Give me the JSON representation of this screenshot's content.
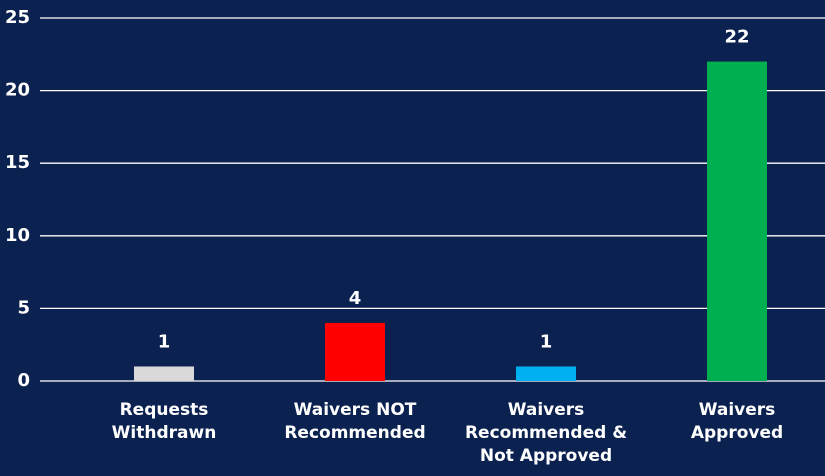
{
  "chart_data": {
    "type": "bar",
    "categories": [
      "Requests Withdrawn",
      "Waivers NOT Recommended",
      "Waivers Recommended & Not Approved",
      "Waivers Approved"
    ],
    "values": [
      1,
      4,
      1,
      22
    ],
    "colors": [
      "#d9d9d9",
      "#ff0000",
      "#00b0f0",
      "#00b050"
    ],
    "ylim": [
      0,
      25
    ],
    "yticks": [
      0,
      5,
      10,
      15,
      20,
      25
    ],
    "grid": true
  }
}
